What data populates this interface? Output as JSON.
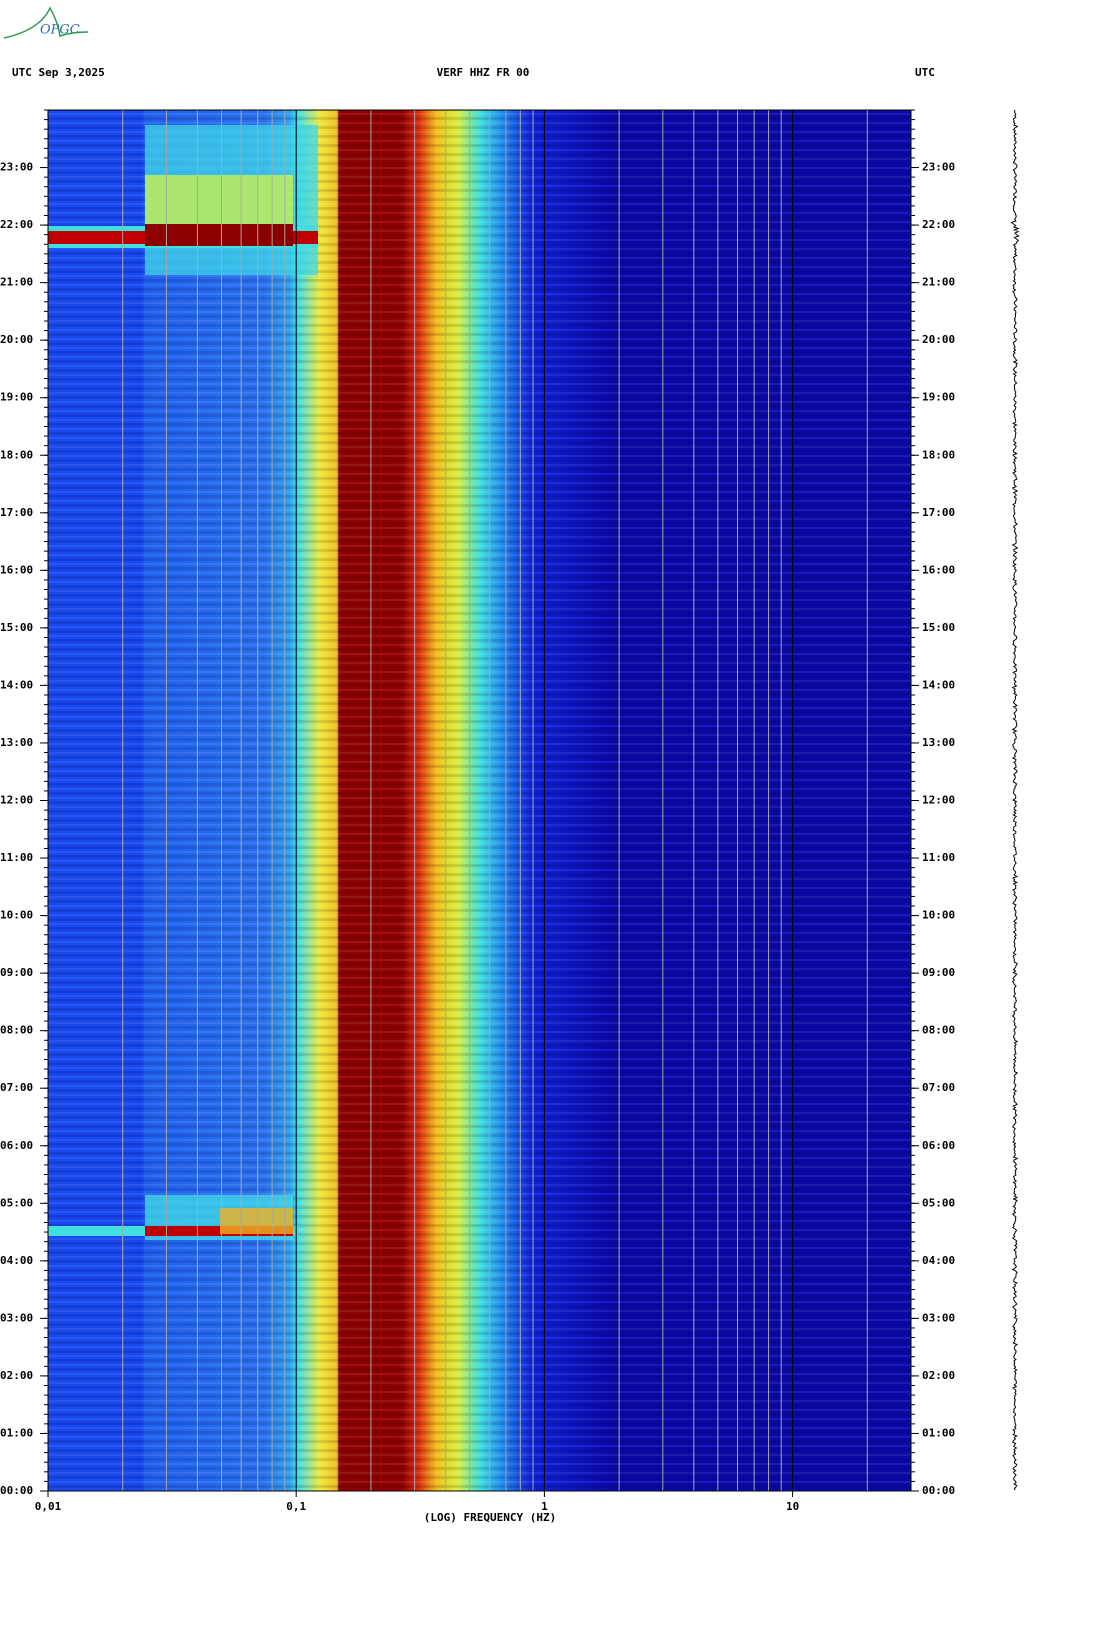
{
  "logo": "OPGC",
  "chart_data": {
    "type": "spectrogram",
    "left_header": "UTC  Sep 3,2025",
    "title": "VERF HHZ FR 00",
    "right_header": "UTC",
    "xlabel": "(LOG) FREQUENCY (HZ)",
    "x_log": true,
    "xlim": [
      0.01,
      30
    ],
    "xticks": [
      {
        "value": 0.01,
        "label": "0,01"
      },
      {
        "value": 0.1,
        "label": "0,1"
      },
      1,
      10
    ],
    "xminorticks": [
      0.02,
      0.03,
      0.04,
      0.05,
      0.06,
      0.07,
      0.08,
      0.09,
      0.2,
      0.3,
      0.4,
      0.5,
      0.6,
      0.7,
      0.8,
      0.9,
      2,
      3,
      4,
      5,
      6,
      7,
      8,
      9,
      20
    ],
    "ylim": [
      0,
      24
    ],
    "yticks": [
      {
        "value": 0,
        "label": "00:00"
      },
      {
        "value": 1,
        "label": "01:00"
      },
      {
        "value": 2,
        "label": "02:00"
      },
      {
        "value": 3,
        "label": "03:00"
      },
      {
        "value": 4,
        "label": "04:00"
      },
      {
        "value": 5,
        "label": "05:00"
      },
      {
        "value": 6,
        "label": "06:00"
      },
      {
        "value": 7,
        "label": "07:00"
      },
      {
        "value": 8,
        "label": "08:00"
      },
      {
        "value": 9,
        "label": "09:00"
      },
      {
        "value": 10,
        "label": "10:00"
      },
      {
        "value": 11,
        "label": "11:00"
      },
      {
        "value": 12,
        "label": "12:00"
      },
      {
        "value": 13,
        "label": "13:00"
      },
      {
        "value": 14,
        "label": "14:00"
      },
      {
        "value": 15,
        "label": "15:00"
      },
      {
        "value": 16,
        "label": "16:00"
      },
      {
        "value": 17,
        "label": "17:00"
      },
      {
        "value": 18,
        "label": "18:00"
      },
      {
        "value": 19,
        "label": "19:00"
      },
      {
        "value": 20,
        "label": "20:00"
      },
      {
        "value": 21,
        "label": "21:00"
      },
      {
        "value": 22,
        "label": "22:00"
      },
      {
        "value": 23,
        "label": "23:00"
      }
    ]
  }
}
